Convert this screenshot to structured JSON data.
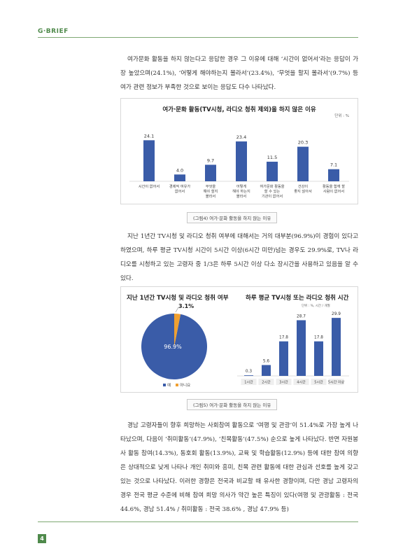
{
  "header": {
    "brand": "G·BRIEF"
  },
  "paragraphs": [
    "여가문화 활동을 하지 않는다고 응답한 경우 그 이유에 대해 ‘시간이 없어서’라는 응답이 가장 높았으며(24.1%), ‘어떻게 해야하는지 몰라서’(23.4%), ‘무엇을 할지 몰라서’(9.7%) 등 여가 관련 정보가 부족한 것으로 보이는 응답도 다수 나타났다.",
    "지난 1년간 TV시청 및 라디오 청취 여부에 대해서는 거의 대부분(96.9%)이 경험이 있다고 하였으며, 하루 평균 TV시청 시간이 5시간 이상(6시간 미만)넘는 경우도 29.9%로, TV나 라디오를 시청하고 있는 고령자 중 1/3은 하루 5시간 이상 다소 장시간을 사용하고 있음을 알 수 있다.",
    "경남 고령자들이 향후 희망하는 사회참여 활동으로 ‘여행 및 관광’이 51.4%로 가장 높게 나타났으며, 다음이 ‘취미활동’(47.9%), ‘친목활동’(47.5%) 순으로 높게 나타났다. 반면 자원봉사 활동 참여(14.3%), 동호회 활동(13.9%), 교육 및 학습활동(12.9%) 등에 대한 참여 의향은 상대적으로 낮게 나타나 개인 취미와 흥미, 친목 관련 활동에 대한 관심과 선호를 높게 갖고 있는 것으로 나타났다. 이러한 경향은 전국과 비교할 때 유사한 경향이며, 다만 경남 고령자의 경우 전국 평균 수준에 비해 참여 희망 의사가 약간 높은 특징이 있다(여행 및 관광활동 : 전국 44.6%, 경남 51.4% / 취미활동 : 전국 38.6% , 경남 47.9% 등)"
  ],
  "captions": {
    "fig4": "(그림4) 여가·문화 활동을 하지 않는 이유",
    "fig5": "(그림5) 여가·문화 활동을 하지 않는 이유"
  },
  "chart_data": [
    {
      "type": "bar",
      "title": "여가·문화 활동(TV시청, 라디오 청취 제외)을 하지 않은 이유",
      "unit": "단위 : %",
      "categories": [
        [
          "시간이 없어서"
        ],
        [
          "경제적 여유가",
          "없어서"
        ],
        [
          "무엇을",
          "해야 할지",
          "몰라서"
        ],
        [
          "어떻게",
          "해야 하는지",
          "몰라서"
        ],
        [
          "여가문화 활동을",
          "할 수 있는",
          "기관이 없어서"
        ],
        [
          "건강이",
          "좋지 않아서"
        ],
        [
          "활동을 함께 할",
          "사람이 없어서"
        ]
      ],
      "values": [
        24.1,
        4.0,
        9.7,
        23.4,
        11.5,
        20.3,
        7.1
      ],
      "ylim": [
        0,
        30
      ],
      "color": "#3a5ca8"
    },
    {
      "type": "pie",
      "title": "지난 1년간 TV시청 및 라디오 청취 여부",
      "slices": [
        {
          "label": "예",
          "value": 96.9,
          "text": "96.9%",
          "color": "#3a5ca8"
        },
        {
          "label": "아니요",
          "value": 3.1,
          "text": "3.1%",
          "color": "#f0a030"
        }
      ],
      "legend": "bottom-left"
    },
    {
      "type": "bar",
      "title": "하루 평균 TV시청 또는 라디오 청취 시간",
      "unit": "단위 : %, 시간 / 개월",
      "categories": [
        "1시간",
        "2시간",
        "3시간",
        "4시간",
        "5시간",
        "5시간 이상"
      ],
      "values": [
        0.3,
        5.6,
        17.8,
        28.7,
        17.8,
        29.9
      ],
      "ylim": [
        0,
        35
      ],
      "color": "#3a5ca8"
    }
  ],
  "footer": {
    "page_number": "4"
  }
}
